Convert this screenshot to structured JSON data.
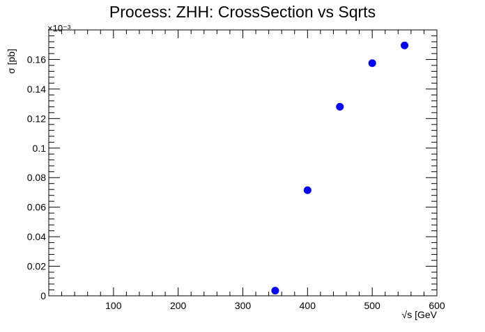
{
  "chart_data": {
    "type": "scatter",
    "title": "Process: ZHH: CrossSection vs Sqrts",
    "xlabel": "√s [GeV",
    "ylabel": "σ [pb]",
    "y_multiplier_label": "×10⁻³",
    "xlim": [
      0,
      600
    ],
    "ylim": [
      0,
      0.18
    ],
    "x_ticks": [
      100,
      200,
      300,
      400,
      500,
      600
    ],
    "x_tick_labels": [
      "100",
      "200",
      "300",
      "400",
      "500",
      "600"
    ],
    "y_ticks": [
      0,
      0.02,
      0.04,
      0.06,
      0.08,
      0.1,
      0.12,
      0.14,
      0.16
    ],
    "y_tick_labels": [
      "0",
      "0.02",
      "0.04",
      "0.06",
      "0.08",
      "0.1",
      "0.12",
      "0.14",
      "0.16"
    ],
    "grid": false,
    "marker_color": "#0000ff",
    "series": [
      {
        "name": "ZHH",
        "x": [
          350,
          400,
          450,
          500,
          550
        ],
        "y": [
          0.0035,
          0.0715,
          0.128,
          0.1575,
          0.1695
        ]
      }
    ]
  }
}
